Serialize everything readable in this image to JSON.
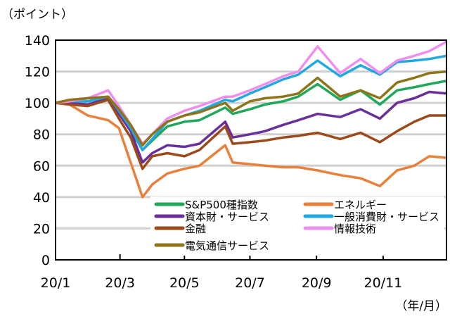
{
  "chart_data": {
    "type": "line",
    "ylabel": "（ポイント）",
    "xlabel": "（年/月）",
    "ylim": [
      0,
      140
    ],
    "yticks": [
      0,
      20,
      40,
      60,
      80,
      100,
      120,
      140
    ],
    "xticks": [
      {
        "label": "20/1",
        "date": "2020-01-02"
      },
      {
        "label": "20/3",
        "date": "2020-03-02"
      },
      {
        "label": "20/5",
        "date": "2020-05-01"
      },
      {
        "label": "20/7",
        "date": "2020-07-01"
      },
      {
        "label": "20/9",
        "date": "2020-09-01"
      },
      {
        "label": "20/11",
        "date": "2020-11-02"
      }
    ],
    "grid": true,
    "legend_position": "bottom-right",
    "x": [
      "2020-01-02",
      "2020-01-15",
      "2020-02-01",
      "2020-02-20",
      "2020-03-01",
      "2020-03-12",
      "2020-03-23",
      "2020-04-01",
      "2020-04-15",
      "2020-05-01",
      "2020-05-15",
      "2020-06-08",
      "2020-06-15",
      "2020-07-01",
      "2020-07-15",
      "2020-08-01",
      "2020-08-15",
      "2020-09-02",
      "2020-09-23",
      "2020-10-12",
      "2020-10-30",
      "2020-11-15",
      "2020-12-01",
      "2020-12-15",
      "2020-12-31"
    ],
    "series": [
      {
        "name": "S&P500種指数",
        "color": "#1fa85a",
        "values": [
          100,
          101,
          101,
          104,
          95,
          83,
          70,
          76,
          85,
          88,
          89,
          97,
          93,
          96,
          99,
          101,
          104,
          112,
          102,
          108,
          99,
          108,
          110,
          112,
          114
        ]
      },
      {
        "name": "エネルギー",
        "color": "#e8803a",
        "values": [
          100,
          99,
          92,
          89,
          84,
          62,
          40,
          48,
          55,
          58,
          60,
          73,
          62,
          61,
          60,
          59,
          59,
          57,
          54,
          52,
          47,
          57,
          60,
          66,
          65
        ]
      },
      {
        "name": "資本財・サービス",
        "color": "#6a2e9a",
        "values": [
          100,
          100,
          99,
          103,
          93,
          82,
          62,
          68,
          73,
          72,
          74,
          88,
          78,
          80,
          82,
          86,
          89,
          93,
          91,
          96,
          90,
          100,
          103,
          107,
          106
        ]
      },
      {
        "name": "一般消費財・サービス",
        "color": "#1fa9e0",
        "values": [
          100,
          101,
          101,
          104,
          95,
          84,
          70,
          77,
          88,
          92,
          95,
          102,
          101,
          106,
          110,
          115,
          118,
          127,
          117,
          124,
          118,
          126,
          127,
          128,
          130
        ]
      },
      {
        "name": "金融",
        "color": "#9b4a1a",
        "values": [
          100,
          99,
          98,
          102,
          90,
          78,
          58,
          66,
          68,
          66,
          70,
          85,
          74,
          75,
          76,
          78,
          79,
          81,
          77,
          81,
          75,
          82,
          88,
          92,
          92
        ]
      },
      {
        "name": "情報技術",
        "color": "#f08ef0",
        "values": [
          100,
          101,
          103,
          108,
          98,
          86,
          74,
          80,
          90,
          95,
          98,
          104,
          104,
          108,
          112,
          117,
          120,
          136,
          119,
          128,
          119,
          127,
          130,
          133,
          139
        ]
      },
      {
        "name": "電気通信サービス",
        "color": "#8d7418",
        "values": [
          100,
          102,
          103,
          104,
          96,
          86,
          73,
          80,
          88,
          92,
          94,
          100,
          95,
          101,
          103,
          104,
          106,
          116,
          104,
          108,
          103,
          113,
          116,
          119,
          120
        ]
      }
    ]
  }
}
